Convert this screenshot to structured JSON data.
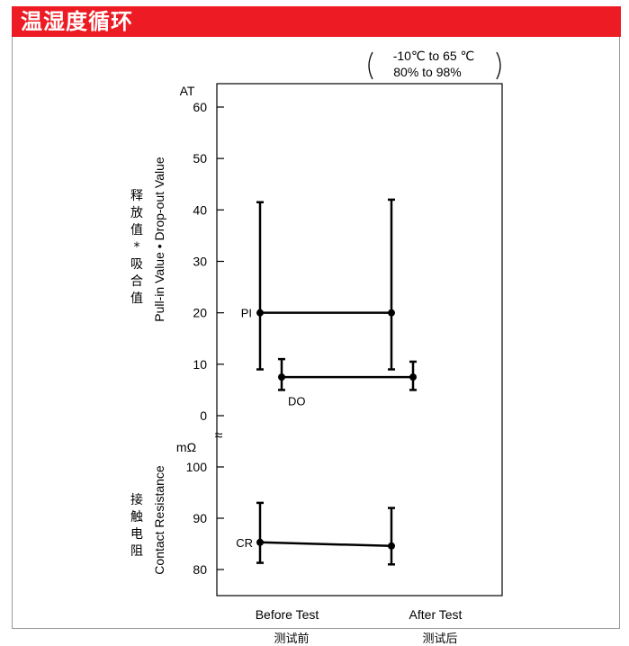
{
  "header": {
    "title": "温湿度循环",
    "color": "#ed1c24"
  },
  "condition": {
    "line1": "-10℃ to 65 ℃",
    "line2": "80% to 98%"
  },
  "chart_data": {
    "type": "errorbar",
    "title": "",
    "x": {
      "categories": [
        "Before Test",
        "After Test"
      ],
      "categories_cn": [
        "测试前",
        "测试后"
      ]
    },
    "upper_panel": {
      "unit": "AT",
      "ylabel_cn": "释放值・吸合值",
      "ylabel_en": "Pull-in Value • Drop-out Value",
      "ylim": [
        0,
        60
      ],
      "ticks": [
        "0",
        "10",
        "20",
        "30",
        "40",
        "50",
        "60"
      ],
      "series": [
        {
          "name": "PI",
          "values": [
            20,
            20
          ],
          "min": [
            9,
            9
          ],
          "max": [
            41.5,
            42
          ]
        },
        {
          "name": "DO",
          "values": [
            7.5,
            7.5
          ],
          "min": [
            5,
            5
          ],
          "max": [
            11,
            10.5
          ]
        }
      ]
    },
    "lower_panel": {
      "unit": "mΩ",
      "ylabel_cn": "接触电阻",
      "ylabel_en": "Contact Resistance",
      "ylim": [
        80,
        100
      ],
      "ticks": [
        "80",
        "90",
        "100"
      ],
      "series": [
        {
          "name": "CR",
          "values": [
            85.3,
            84.6
          ],
          "min": [
            81.3,
            81
          ],
          "max": [
            93,
            92
          ]
        }
      ]
    },
    "axis_break": "≈"
  }
}
